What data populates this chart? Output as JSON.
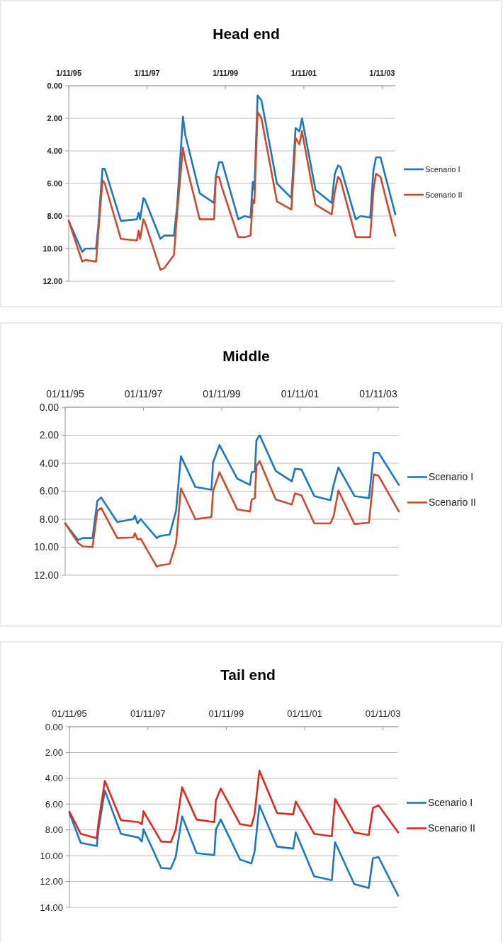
{
  "chart_data": [
    {
      "type": "line",
      "title": "Head end",
      "legend": "right",
      "grid": "y",
      "ylim": [
        12,
        0
      ],
      "yticks": [
        {
          "value": 0,
          "label": "0.00"
        },
        {
          "value": 2,
          "label": "2.00"
        },
        {
          "value": 4,
          "label": "4.00"
        },
        {
          "value": 6,
          "label": "6.00"
        },
        {
          "value": 8,
          "label": "8.00"
        },
        {
          "value": 10,
          "label": "10.00"
        },
        {
          "value": 12,
          "label": "12.00"
        }
      ],
      "xlim": [
        "1995-11-01",
        "2004-03-03"
      ],
      "xticks": [
        {
          "value": "1995-11-01",
          "label": "1/11/95"
        },
        {
          "value": "1997-11-01",
          "label": "1/11/97"
        },
        {
          "value": "1999-11-01",
          "label": "1/11/99"
        },
        {
          "value": "2001-11-01",
          "label": "1/11/01"
        },
        {
          "value": "2003-11-01",
          "label": "1/11/03"
        }
      ],
      "x": [
        "1995-11-01",
        "1996-03-06",
        "1996-04-05",
        "1996-07-13",
        "1996-08-03",
        "1996-09-11",
        "1996-10-02",
        "1997-03-01",
        "1997-07-29",
        "1997-08-13",
        "1997-08-28",
        "1997-09-27",
        "1997-10-12",
        "1998-03-05",
        "1998-04-10",
        "1998-07-09",
        "1998-08-08",
        "1998-10-01",
        "1998-10-22",
        "1999-03-06",
        "1999-07-19",
        "1999-08-03",
        "1999-09-02",
        "1999-10-02",
        "2000-02-29",
        "2000-04-29",
        "2000-06-22",
        "2000-07-13",
        "2000-07-28",
        "2000-08-27",
        "2000-10-02",
        "2001-02-23",
        "2001-07-08",
        "2001-08-16",
        "2001-09-21",
        "2001-10-15",
        "2002-02-18",
        "2002-07-18",
        "2002-08-17",
        "2002-09-16",
        "2002-10-10",
        "2003-02-28",
        "2003-04-14",
        "2003-07-13",
        "2003-08-12",
        "2003-09-05",
        "2003-10-17",
        "2004-03-03"
      ],
      "series": [
        {
          "name": "Scenario I",
          "color": "#1a78c2",
          "values": [
            8.3,
            10.2,
            10.0,
            10.0,
            8.6,
            5.1,
            5.1,
            8.3,
            8.2,
            7.8,
            8.2,
            6.9,
            7.0,
            9.4,
            9.2,
            9.2,
            7.4,
            1.9,
            3.0,
            6.6,
            7.2,
            5.6,
            4.7,
            4.7,
            8.2,
            8.0,
            8.1,
            5.9,
            6.4,
            0.6,
            0.9,
            6.0,
            6.9,
            2.6,
            2.8,
            2.0,
            6.4,
            7.2,
            5.4,
            4.9,
            5.0,
            8.2,
            8.0,
            8.1,
            5.2,
            4.4,
            4.4,
            7.9
          ]
        },
        {
          "name": "Scenario II",
          "color": "#cc4a2e",
          "values": [
            8.3,
            10.8,
            10.7,
            10.8,
            9.0,
            5.8,
            6.0,
            9.4,
            9.5,
            8.9,
            9.4,
            8.2,
            8.4,
            11.3,
            11.2,
            10.4,
            7.8,
            3.8,
            4.6,
            8.2,
            8.2,
            5.6,
            5.6,
            6.3,
            9.3,
            9.3,
            9.2,
            7.0,
            7.2,
            1.6,
            2.0,
            7.1,
            7.6,
            3.2,
            3.6,
            2.8,
            7.3,
            7.9,
            6.5,
            5.6,
            5.8,
            9.3,
            9.3,
            9.3,
            6.4,
            5.4,
            5.6,
            9.2
          ]
        }
      ]
    },
    {
      "type": "line",
      "title": "Middle",
      "legend": "right",
      "grid": "y",
      "ylim": [
        12,
        0
      ],
      "yticks": [
        {
          "value": 0,
          "label": "0.00"
        },
        {
          "value": 2,
          "label": "2.00"
        },
        {
          "value": 4,
          "label": "4.00"
        },
        {
          "value": 6,
          "label": "6.00"
        },
        {
          "value": 8,
          "label": "8.00"
        },
        {
          "value": 10,
          "label": "10.00"
        },
        {
          "value": 12,
          "label": "12.00"
        }
      ],
      "xlim": [
        "1995-11-01",
        "2004-05-11"
      ],
      "xticks": [
        {
          "value": "1995-11-01",
          "label": "01/11/95"
        },
        {
          "value": "1997-11-01",
          "label": "01/11/97"
        },
        {
          "value": "1999-11-01",
          "label": "01/11/99"
        },
        {
          "value": "2001-11-01",
          "label": "01/11/01"
        },
        {
          "value": "2003-11-01",
          "label": "01/11/03"
        }
      ],
      "x": [
        "1995-11-01",
        "1996-02-29",
        "1996-04-14",
        "1996-07-13",
        "1996-08-27",
        "1996-10-02",
        "1997-03-01",
        "1997-07-29",
        "1997-08-13",
        "1997-09-06",
        "1997-10-06",
        "1998-03-05",
        "1998-04-04",
        "1998-07-03",
        "1998-09-01",
        "1998-10-16",
        "1999-02-28",
        "1999-07-28",
        "1999-08-12",
        "1999-10-11",
        "2000-03-24",
        "2000-07-22",
        "2000-08-06",
        "2000-09-05",
        "2000-09-20",
        "2000-10-20",
        "2001-03-19",
        "2001-08-16",
        "2001-09-15",
        "2001-11-14",
        "2002-03-14",
        "2002-08-11",
        "2002-09-10",
        "2002-10-25",
        "2003-03-24",
        "2003-08-06",
        "2003-09-20",
        "2003-11-04",
        "2004-05-11"
      ],
      "series": [
        {
          "name": "Scenario I",
          "color": "#1a78c2",
          "values": [
            8.3,
            9.5,
            9.35,
            9.35,
            6.7,
            6.45,
            8.2,
            8.0,
            7.75,
            8.3,
            8.0,
            9.35,
            9.2,
            9.1,
            7.4,
            3.5,
            5.7,
            5.9,
            3.95,
            2.7,
            5.1,
            5.55,
            4.65,
            4.6,
            2.35,
            2.0,
            4.55,
            5.3,
            4.4,
            4.45,
            6.35,
            6.65,
            5.55,
            4.3,
            6.35,
            6.5,
            3.25,
            3.25,
            5.55
          ]
        },
        {
          "name": "Scenario II",
          "color": "#cc4a2e",
          "values": [
            8.3,
            9.7,
            9.95,
            10.0,
            7.4,
            7.2,
            9.35,
            9.3,
            9.0,
            9.45,
            9.4,
            11.4,
            11.3,
            11.2,
            9.7,
            5.8,
            8.0,
            7.85,
            6.0,
            4.65,
            7.3,
            7.45,
            6.6,
            6.5,
            4.2,
            3.85,
            6.6,
            6.95,
            6.15,
            6.3,
            8.3,
            8.3,
            7.8,
            5.95,
            8.35,
            8.25,
            4.8,
            4.9,
            7.45
          ]
        }
      ]
    },
    {
      "type": "line",
      "title": "Tail end",
      "legend": "right",
      "grid": "y",
      "ylim": [
        14,
        0
      ],
      "yticks": [
        {
          "value": 0,
          "label": "0.00"
        },
        {
          "value": 2,
          "label": "2.00"
        },
        {
          "value": 4,
          "label": "4.00"
        },
        {
          "value": 6,
          "label": "6.00"
        },
        {
          "value": 8,
          "label": "8.00"
        },
        {
          "value": 10,
          "label": "10.00"
        },
        {
          "value": 12,
          "label": "12.00"
        },
        {
          "value": 14,
          "label": "14.00"
        }
      ],
      "xlim": [
        "1995-11-01",
        "2004-03-21"
      ],
      "xticks": [
        {
          "value": "1995-11-01",
          "label": "01/11/95"
        },
        {
          "value": "1997-11-01",
          "label": "01/11/97"
        },
        {
          "value": "1999-11-01",
          "label": "01/11/99"
        },
        {
          "value": "2001-11-01",
          "label": "01/11/01"
        },
        {
          "value": "2003-11-01",
          "label": "01/11/03"
        }
      ],
      "x": [
        "1995-11-01",
        "1996-02-14",
        "1996-07-13",
        "1996-07-28",
        "1996-09-26",
        "1997-02-23",
        "1997-08-07",
        "1997-09-06",
        "1997-09-21",
        "1998-03-05",
        "1998-06-03",
        "1998-07-18",
        "1998-09-16",
        "1999-01-29",
        "1999-07-13",
        "1999-07-28",
        "1999-09-11",
        "2000-03-09",
        "2000-06-22",
        "2000-07-22",
        "2000-09-05",
        "2001-02-17",
        "2001-07-17",
        "2001-08-10",
        "2002-01-28",
        "2002-07-12",
        "2002-08-11",
        "2003-02-06",
        "2003-06-21",
        "2003-07-30",
        "2003-09-20",
        "2004-03-21"
      ],
      "series": [
        {
          "name": "Scenario I",
          "color": "#1a78c2",
          "values": [
            6.7,
            9.0,
            9.25,
            8.0,
            4.95,
            8.3,
            8.6,
            8.9,
            7.95,
            10.95,
            11.0,
            10.1,
            6.95,
            9.8,
            9.95,
            7.95,
            7.2,
            10.3,
            10.6,
            9.7,
            6.1,
            9.3,
            9.45,
            8.2,
            11.6,
            11.9,
            8.95,
            12.2,
            12.5,
            10.2,
            10.1,
            13.1
          ]
        },
        {
          "name": "Scenario II",
          "color": "#dd2a1e",
          "values": [
            6.6,
            8.3,
            8.65,
            7.5,
            4.2,
            7.25,
            7.4,
            7.55,
            6.55,
            8.9,
            8.95,
            8.0,
            4.7,
            7.2,
            7.4,
            5.7,
            4.8,
            7.55,
            7.7,
            6.8,
            3.4,
            6.7,
            6.8,
            5.8,
            8.3,
            8.5,
            5.6,
            8.2,
            8.4,
            6.3,
            6.1,
            8.2
          ]
        }
      ]
    }
  ]
}
